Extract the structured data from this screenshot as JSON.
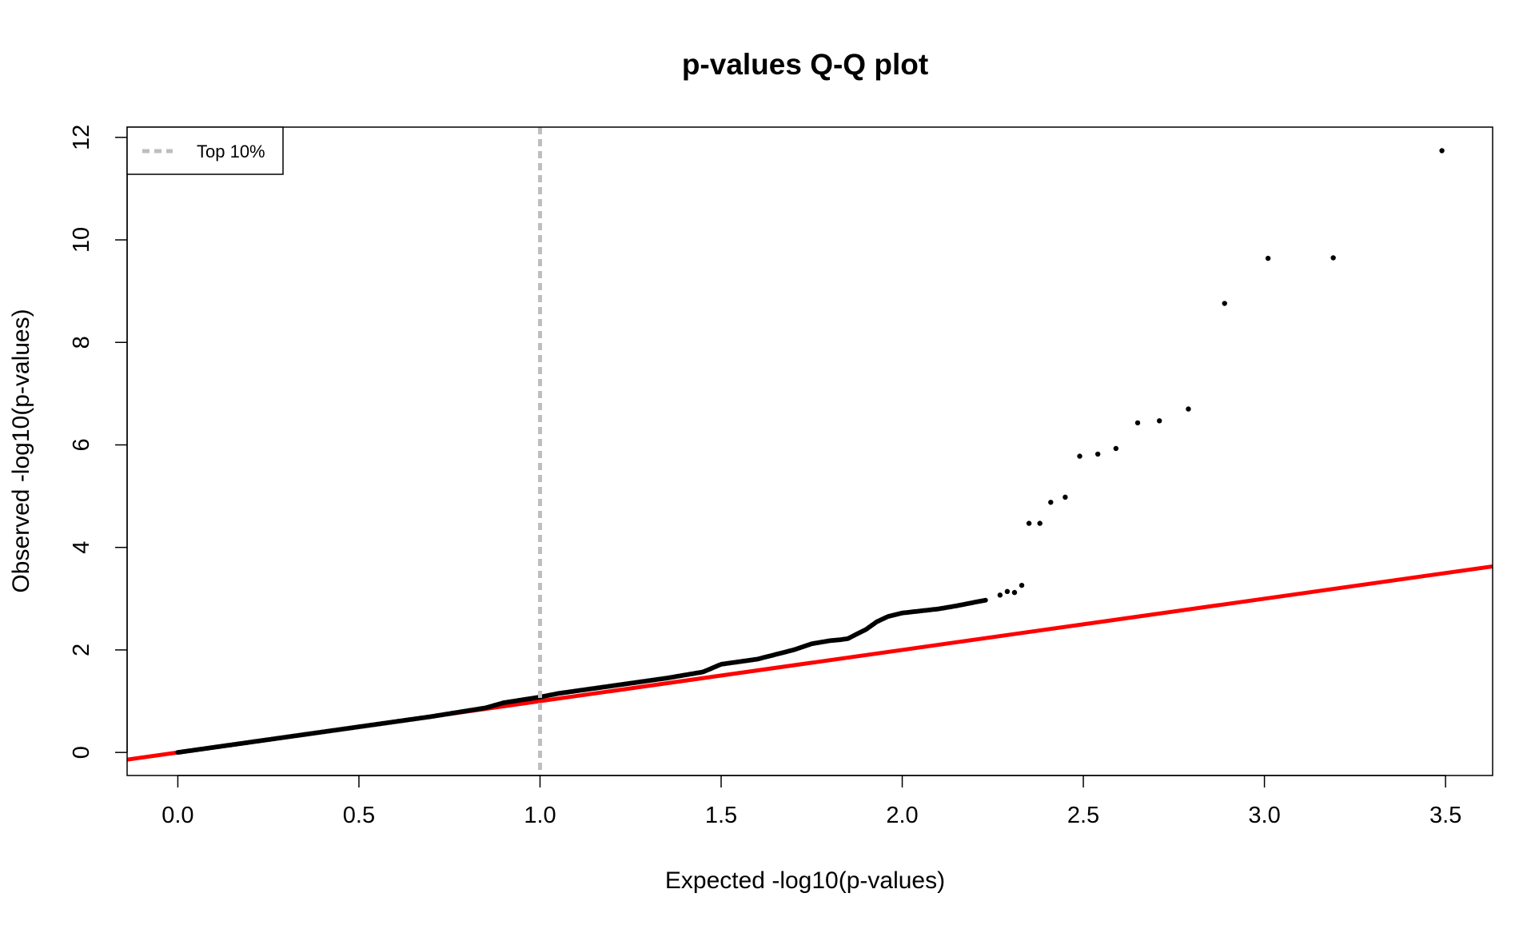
{
  "chart_data": {
    "type": "scatter",
    "title": "p-values Q-Q plot",
    "xlabel": "Expected -log10(p-values)",
    "ylabel": "Observed -log10(p-values)",
    "xlim": [
      -0.14,
      3.63
    ],
    "ylim": [
      -0.45,
      12.2
    ],
    "x_ticks": [
      0,
      0.5,
      1,
      1.5,
      2,
      2.5,
      3,
      3.5
    ],
    "x_tick_labels": [
      "0.0",
      "0.5",
      "1.0",
      "1.5",
      "2.0",
      "2.5",
      "3.0",
      "3.5"
    ],
    "y_ticks": [
      0,
      2,
      4,
      6,
      8,
      10,
      12
    ],
    "y_tick_labels": [
      "0",
      "2",
      "4",
      "6",
      "8",
      "10",
      "12"
    ],
    "grid": false,
    "legend": {
      "position": "top-left",
      "entries": [
        {
          "label": "Top 10%",
          "style": "dashed",
          "color": "#bebebe"
        }
      ]
    },
    "reference_line": {
      "type": "y=x",
      "color": "#ff0000"
    },
    "threshold_line": {
      "type": "vertical",
      "x": 1.0,
      "color": "#bebebe",
      "style": "dashed"
    },
    "point_color": "#000000",
    "dense_segments": [
      {
        "x": [
          0.0,
          0.3,
          0.5,
          0.7,
          0.85,
          0.9,
          1.0,
          1.05,
          1.2,
          1.35,
          1.45,
          1.5,
          1.6,
          1.7,
          1.75,
          1.8,
          1.83,
          1.85,
          1.88,
          1.9,
          1.93,
          1.96,
          2.0,
          2.05,
          2.1,
          2.15,
          2.2,
          2.23
        ],
        "y": [
          0.0,
          0.3,
          0.5,
          0.7,
          0.87,
          0.97,
          1.08,
          1.15,
          1.3,
          1.45,
          1.57,
          1.72,
          1.82,
          2.0,
          2.12,
          2.18,
          2.2,
          2.22,
          2.33,
          2.4,
          2.55,
          2.65,
          2.72,
          2.76,
          2.8,
          2.86,
          2.93,
          2.97
        ]
      }
    ],
    "points": [
      {
        "x": 2.27,
        "y": 3.07
      },
      {
        "x": 2.29,
        "y": 3.14
      },
      {
        "x": 2.31,
        "y": 3.12
      },
      {
        "x": 2.33,
        "y": 3.26
      },
      {
        "x": 2.35,
        "y": 4.47
      },
      {
        "x": 2.38,
        "y": 4.47
      },
      {
        "x": 2.41,
        "y": 4.88
      },
      {
        "x": 2.45,
        "y": 4.98
      },
      {
        "x": 2.49,
        "y": 5.78
      },
      {
        "x": 2.54,
        "y": 5.82
      },
      {
        "x": 2.59,
        "y": 5.93
      },
      {
        "x": 2.65,
        "y": 6.43
      },
      {
        "x": 2.71,
        "y": 6.47
      },
      {
        "x": 2.79,
        "y": 6.7
      },
      {
        "x": 2.89,
        "y": 8.76
      },
      {
        "x": 3.01,
        "y": 9.64
      },
      {
        "x": 3.19,
        "y": 9.65
      },
      {
        "x": 3.49,
        "y": 11.74
      }
    ]
  }
}
